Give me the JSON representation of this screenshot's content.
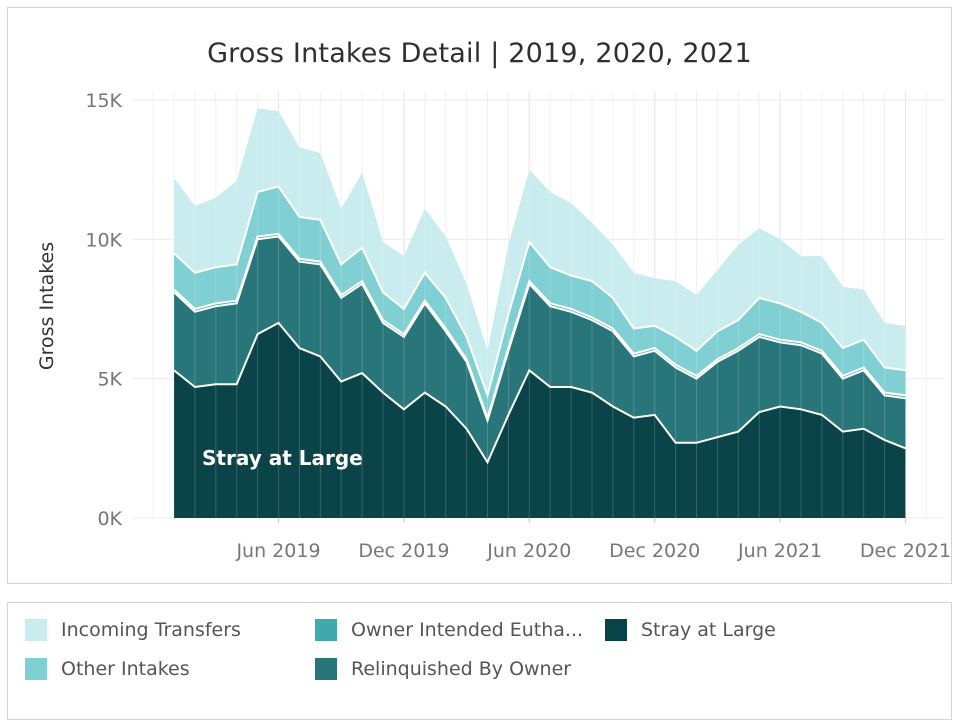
{
  "chart_data": {
    "type": "area",
    "title": "Gross Intakes Detail | 2019, 2020, 2021",
    "ylabel": "Gross Intakes",
    "xlabel": "",
    "ylim": [
      0,
      15000
    ],
    "yticks": [
      0,
      5000,
      10000,
      15000
    ],
    "ytick_labels": [
      "0K",
      "5K",
      "10K",
      "15K"
    ],
    "xtick_labels": [
      "Jun 2019",
      "Dec 2019",
      "Jun 2020",
      "Dec 2020",
      "Jun 2021",
      "Dec 2021"
    ],
    "xtick_months": [
      "2019-06",
      "2019-12",
      "2020-06",
      "2020-12",
      "2021-06",
      "2021-12"
    ],
    "grid": true,
    "stacked": true,
    "annotation": "Stray at Large",
    "x": [
      "2019-01",
      "2019-02",
      "2019-03",
      "2019-04",
      "2019-05",
      "2019-06",
      "2019-07",
      "2019-08",
      "2019-09",
      "2019-10",
      "2019-11",
      "2019-12",
      "2020-01",
      "2020-02",
      "2020-03",
      "2020-04",
      "2020-05",
      "2020-06",
      "2020-07",
      "2020-08",
      "2020-09",
      "2020-10",
      "2020-11",
      "2020-12",
      "2021-01",
      "2021-02",
      "2021-03",
      "2021-04",
      "2021-05",
      "2021-06",
      "2021-07",
      "2021-08",
      "2021-09",
      "2021-10",
      "2021-11",
      "2021-12"
    ],
    "series": [
      {
        "name": "Stray at Large",
        "values": [
          5300,
          4700,
          4800,
          4800,
          6600,
          7000,
          6100,
          5800,
          4900,
          5200,
          4500,
          3900,
          4500,
          4000,
          3200,
          2000,
          3700,
          5300,
          4700,
          4700,
          4500,
          4000,
          3600,
          3700,
          2700,
          2700,
          2900,
          3100,
          3800,
          4000,
          3900,
          3700,
          3100,
          3200,
          2800,
          2500
        ]
      },
      {
        "name": "Relinquished By Owner",
        "values": [
          2800,
          2700,
          2800,
          2900,
          3400,
          3100,
          3100,
          3300,
          3000,
          3200,
          2500,
          2600,
          3200,
          2700,
          2400,
          1500,
          2300,
          3100,
          2900,
          2700,
          2600,
          2700,
          2200,
          2300,
          2700,
          2300,
          2700,
          2900,
          2700,
          2300,
          2300,
          2200,
          1900,
          2100,
          1600,
          1800
        ]
      },
      {
        "name": "Owner Intended Eutha...",
        "values": [
          100,
          100,
          100,
          100,
          100,
          100,
          100,
          100,
          100,
          100,
          100,
          100,
          100,
          100,
          100,
          100,
          100,
          100,
          100,
          100,
          100,
          100,
          100,
          100,
          100,
          100,
          100,
          100,
          100,
          100,
          100,
          100,
          100,
          100,
          100,
          100
        ]
      },
      {
        "name": "Other Intakes",
        "values": [
          1300,
          1300,
          1300,
          1300,
          1600,
          1700,
          1500,
          1500,
          1100,
          1200,
          1000,
          900,
          1000,
          1100,
          800,
          800,
          1200,
          1400,
          1300,
          1200,
          1300,
          1100,
          900,
          800,
          1000,
          900,
          1000,
          1000,
          1300,
          1300,
          1100,
          1000,
          1000,
          1000,
          900,
          900
        ]
      },
      {
        "name": "Incoming Transfers",
        "values": [
          2700,
          2400,
          2500,
          3000,
          3000,
          2700,
          2500,
          2400,
          2000,
          2700,
          1800,
          1900,
          2300,
          2200,
          1900,
          1600,
          2500,
          2600,
          2700,
          2600,
          2100,
          1900,
          2000,
          1700,
          2000,
          2000,
          2200,
          2700,
          2500,
          2300,
          2000,
          2400,
          2200,
          1800,
          1600,
          1600
        ]
      }
    ],
    "colors": {
      "Incoming Transfers": "#c9ecee",
      "Other Intakes": "#7fcfd3",
      "Owner Intended Eutha...": "#3fa9ae",
      "Relinquished By Owner": "#28767a",
      "Stray at Large": "#0a4448"
    },
    "legend_position": "bottom"
  },
  "legend": {
    "items": [
      {
        "label": "Incoming Transfers",
        "color": "#c9ecee"
      },
      {
        "label": "Owner Intended Eutha...",
        "color": "#3fa9ae"
      },
      {
        "label": "Stray at Large",
        "color": "#0a4448"
      },
      {
        "label": "Other Intakes",
        "color": "#7fcfd3"
      },
      {
        "label": "Relinquished By Owner",
        "color": "#28767a"
      }
    ]
  }
}
